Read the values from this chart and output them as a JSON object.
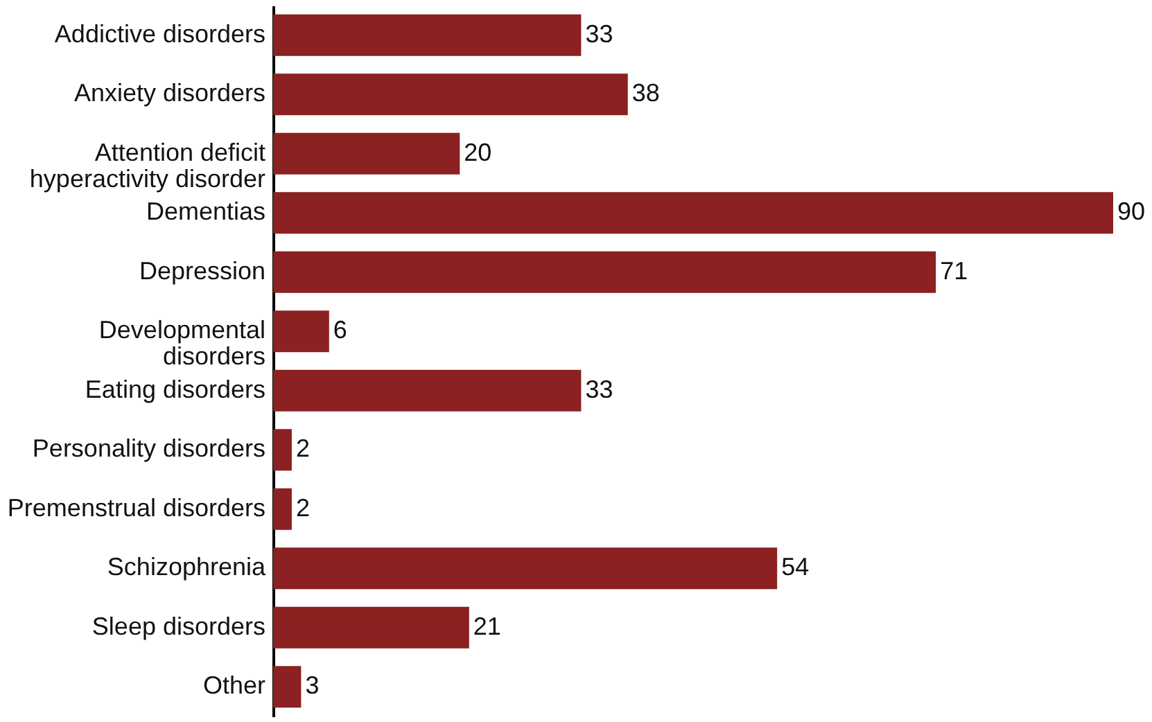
{
  "chart_data": {
    "type": "bar",
    "orientation": "horizontal",
    "data_labels": true,
    "categories": [
      "Addictive disorders",
      "Anxiety disorders",
      "Attention deficit hyperactivity disorder",
      "Dementias",
      "Depression",
      "Developmental disorders",
      "Eating disorders",
      "Personality disorders",
      "Premenstrual disorders",
      "Schizophrenia",
      "Sleep disorders",
      "Other"
    ],
    "values": [
      33,
      38,
      20,
      90,
      71,
      6,
      33,
      2,
      2,
      54,
      21,
      3
    ],
    "color": "#8b2120"
  }
}
